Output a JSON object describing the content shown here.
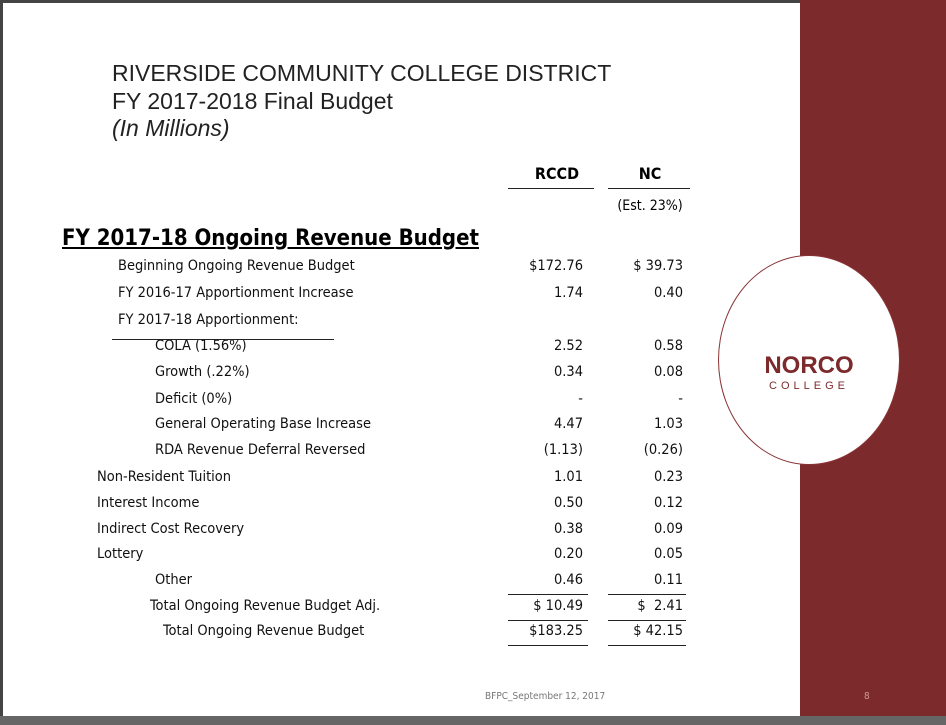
{
  "header": {
    "title": "RIVERSIDE COMMUNITY COLLEGE DISTRICT",
    "subtitle": "FY 2017-2018 Final Budget",
    "units": "(In Millions)"
  },
  "columns": {
    "rccd": "RCCD",
    "nc": "NC",
    "nc_note": "(Est. 23%)"
  },
  "section": "FY 2017-18 Ongoing Revenue Budget",
  "table": {
    "rows": [
      {
        "label": "Beginning Ongoing Revenue Budget",
        "rccd": "$172.76",
        "nc": "$ 39.73"
      },
      {
        "label": "FY 2016-17 Apportionment Increase",
        "rccd": "1.74",
        "nc": "0.40"
      },
      {
        "label": "FY 2017-18 Apportionment:"
      },
      {
        "label": "COLA (1.56%)",
        "rccd": "2.52",
        "nc": "0.58"
      },
      {
        "label": "Growth (.22%)",
        "rccd": "0.34",
        "nc": "0.08"
      },
      {
        "label": "Deficit (0%)",
        "rccd": "-",
        "nc": "-"
      },
      {
        "label": "General Operating Base Increase",
        "rccd": "4.47",
        "nc": "1.03"
      },
      {
        "label": "RDA Revenue Deferral Reversed",
        "rccd": "(1.13)",
        "nc": "(0.26)"
      },
      {
        "label": "Non-Resident Tuition",
        "rccd": "1.01",
        "nc": "0.23"
      },
      {
        "label": "Interest Income",
        "rccd": "0.50",
        "nc": "0.12"
      },
      {
        "label": "Indirect Cost Recovery",
        "rccd": "0.38",
        "nc": "0.09"
      },
      {
        "label": "Lottery",
        "rccd": "0.20",
        "nc": "0.05"
      },
      {
        "label": "Other",
        "rccd": "0.46",
        "nc": "0.11"
      },
      {
        "label": "Total Ongoing Revenue Budget Adj.",
        "rccd": "$ 10.49",
        "nc": "$  2.41"
      },
      {
        "label": "Total Ongoing Revenue Budget",
        "rccd": "$183.25",
        "nc": "$ 42.15"
      }
    ]
  },
  "logo": {
    "name": "NORCO",
    "tagline": "COLLEGE"
  },
  "footer": {
    "text": "BFPC_September 12, 2017",
    "page": "8"
  }
}
